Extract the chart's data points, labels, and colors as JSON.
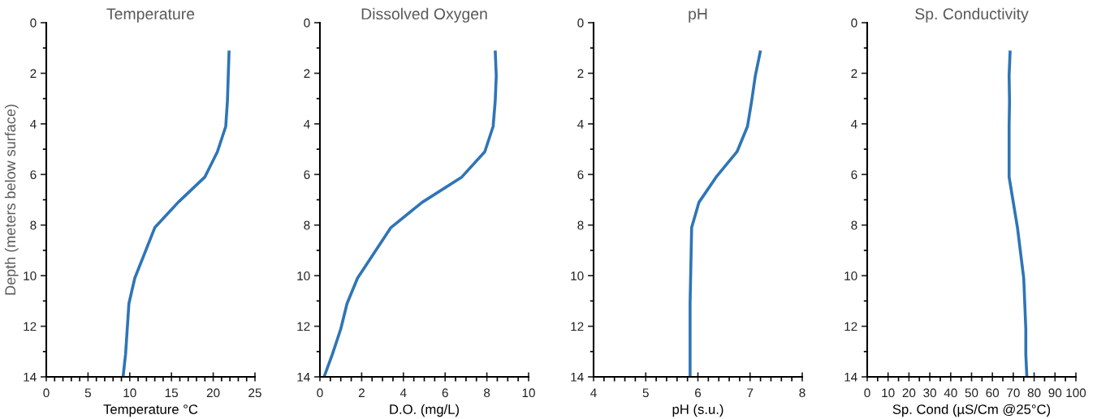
{
  "chart_data": [
    {
      "type": "line",
      "title": "Temperature",
      "xlabel": "Temperature °C",
      "ylabel": "Depth (meters below surface)",
      "xlim": [
        0,
        25
      ],
      "xticks": [
        0,
        {
          "value": 1,
          "label": null
        },
        {
          "value": 2,
          "label": null
        },
        {
          "value": 3,
          "label": null
        },
        {
          "value": 4,
          "label": null
        },
        5,
        {
          "value": 6,
          "label": null
        },
        {
          "value": 7,
          "label": null
        },
        {
          "value": 8,
          "label": null
        },
        {
          "value": 9,
          "label": null
        },
        10,
        {
          "value": 11,
          "label": null
        },
        {
          "value": 12,
          "label": null
        },
        {
          "value": 13,
          "label": null
        },
        {
          "value": 14,
          "label": null
        },
        15,
        {
          "value": 16,
          "label": null
        },
        {
          "value": 17,
          "label": null
        },
        {
          "value": 18,
          "label": null
        },
        {
          "value": 19,
          "label": null
        },
        20,
        {
          "value": 21,
          "label": null
        },
        {
          "value": 22,
          "label": null
        },
        {
          "value": 23,
          "label": null
        },
        {
          "value": 24,
          "label": null
        },
        25
      ],
      "ylim": [
        14,
        0
      ],
      "yticks": [
        0,
        {
          "value": 1,
          "label": null
        },
        2,
        {
          "value": 3,
          "label": null
        },
        4,
        {
          "value": 5,
          "label": null
        },
        6,
        {
          "value": 7,
          "label": null
        },
        8,
        {
          "value": 9,
          "label": null
        },
        10,
        {
          "value": 11,
          "label": null
        },
        12,
        {
          "value": 13,
          "label": null
        },
        14
      ],
      "grid": false,
      "marker": "none",
      "line_style": "solid",
      "series": [
        {
          "color": "#2e75b6",
          "x": [
            21.9,
            21.8,
            21.7,
            21.5,
            20.5,
            19.0,
            15.8,
            13.0,
            11.8,
            10.6,
            9.9,
            9.7,
            9.5,
            9.2
          ],
          "values": [
            1.1,
            2.1,
            3.1,
            4.1,
            5.1,
            6.1,
            7.1,
            8.1,
            9.1,
            10.1,
            11.1,
            12.1,
            13.1,
            14
          ]
        }
      ]
    },
    {
      "type": "line",
      "title": "Dissolved Oxygen",
      "xlabel": "D.O. (mg/L)",
      "xlim": [
        0,
        10
      ],
      "xticks": [
        0,
        {
          "value": 0.5,
          "label": null
        },
        {
          "value": 1,
          "label": null
        },
        {
          "value": 1.5,
          "label": null
        },
        2,
        {
          "value": 2.5,
          "label": null
        },
        {
          "value": 3,
          "label": null
        },
        {
          "value": 3.5,
          "label": null
        },
        4,
        {
          "value": 4.5,
          "label": null
        },
        {
          "value": 5,
          "label": null
        },
        {
          "value": 5.5,
          "label": null
        },
        6,
        {
          "value": 6.5,
          "label": null
        },
        {
          "value": 7,
          "label": null
        },
        {
          "value": 7.5,
          "label": null
        },
        8,
        {
          "value": 8.5,
          "label": null
        },
        {
          "value": 9,
          "label": null
        },
        {
          "value": 9.5,
          "label": null
        },
        10
      ],
      "ylim": [
        14,
        0
      ],
      "yticks": [
        0,
        {
          "value": 1,
          "label": null
        },
        2,
        {
          "value": 3,
          "label": null
        },
        4,
        {
          "value": 5,
          "label": null
        },
        6,
        {
          "value": 7,
          "label": null
        },
        8,
        {
          "value": 9,
          "label": null
        },
        10,
        {
          "value": 11,
          "label": null
        },
        12,
        {
          "value": 13,
          "label": null
        },
        14
      ],
      "grid": false,
      "marker": "none",
      "line_style": "solid",
      "series": [
        {
          "color": "#2e75b6",
          "x": [
            8.4,
            8.45,
            8.4,
            8.3,
            7.9,
            6.8,
            4.9,
            3.4,
            2.6,
            1.8,
            1.3,
            1.0,
            0.6,
            0.2
          ],
          "values": [
            1.1,
            2.1,
            3.1,
            4.1,
            5.1,
            6.1,
            7.1,
            8.1,
            9.1,
            10.1,
            11.1,
            12.1,
            13.1,
            14
          ]
        }
      ]
    },
    {
      "type": "line",
      "title": "pH",
      "xlabel": "pH (s.u.)",
      "xlim": [
        4,
        8
      ],
      "xticks": [
        4,
        {
          "value": 4.2,
          "label": null
        },
        {
          "value": 4.4,
          "label": null
        },
        {
          "value": 4.6,
          "label": null
        },
        {
          "value": 4.8,
          "label": null
        },
        5,
        {
          "value": 5.2,
          "label": null
        },
        {
          "value": 5.4,
          "label": null
        },
        {
          "value": 5.6,
          "label": null
        },
        {
          "value": 5.8,
          "label": null
        },
        6,
        {
          "value": 6.2,
          "label": null
        },
        {
          "value": 6.4,
          "label": null
        },
        {
          "value": 6.6,
          "label": null
        },
        {
          "value": 6.8,
          "label": null
        },
        7,
        {
          "value": 7.2,
          "label": null
        },
        {
          "value": 7.4,
          "label": null
        },
        {
          "value": 7.6,
          "label": null
        },
        {
          "value": 7.8,
          "label": null
        },
        8
      ],
      "ylim": [
        14,
        0
      ],
      "yticks": [
        0,
        {
          "value": 1,
          "label": null
        },
        2,
        {
          "value": 3,
          "label": null
        },
        4,
        {
          "value": 5,
          "label": null
        },
        6,
        {
          "value": 7,
          "label": null
        },
        8,
        {
          "value": 9,
          "label": null
        },
        10,
        {
          "value": 11,
          "label": null
        },
        12,
        {
          "value": 13,
          "label": null
        },
        14
      ],
      "grid": false,
      "marker": "none",
      "line_style": "solid",
      "series": [
        {
          "color": "#2e75b6",
          "x": [
            7.2,
            7.1,
            7.03,
            6.95,
            6.75,
            6.35,
            6.02,
            5.88,
            5.87,
            5.86,
            5.85,
            5.85,
            5.85,
            5.85
          ],
          "values": [
            1.1,
            2.1,
            3.1,
            4.1,
            5.1,
            6.1,
            7.1,
            8.1,
            9.1,
            10.1,
            11.1,
            12.1,
            13.1,
            14
          ]
        }
      ]
    },
    {
      "type": "line",
      "title": "Sp. Conductivity",
      "xlabel": "Sp. Cond (µS/Cm @25°C)",
      "xlim": [
        0,
        100
      ],
      "xticks": [
        0,
        {
          "value": 5,
          "label": null
        },
        10,
        {
          "value": 15,
          "label": null
        },
        20,
        {
          "value": 25,
          "label": null
        },
        30,
        {
          "value": 35,
          "label": null
        },
        40,
        {
          "value": 45,
          "label": null
        },
        50,
        {
          "value": 55,
          "label": null
        },
        60,
        {
          "value": 65,
          "label": null
        },
        70,
        {
          "value": 75,
          "label": null
        },
        80,
        {
          "value": 85,
          "label": null
        },
        90,
        {
          "value": 95,
          "label": null
        },
        100
      ],
      "ylim": [
        14,
        0
      ],
      "yticks": [
        0,
        {
          "value": 1,
          "label": null
        },
        2,
        {
          "value": 3,
          "label": null
        },
        4,
        {
          "value": 5,
          "label": null
        },
        6,
        {
          "value": 7,
          "label": null
        },
        8,
        {
          "value": 9,
          "label": null
        },
        10,
        {
          "value": 11,
          "label": null
        },
        12,
        {
          "value": 13,
          "label": null
        },
        14
      ],
      "grid": false,
      "marker": "none",
      "line_style": "solid",
      "series": [
        {
          "color": "#2e75b6",
          "x": [
            68.5,
            68.0,
            68.2,
            68.0,
            68.0,
            68.0,
            70.0,
            72.0,
            73.5,
            75.0,
            75.5,
            76.0,
            76.0,
            76.5
          ],
          "values": [
            1.1,
            2.1,
            3.1,
            4.1,
            5.1,
            6.1,
            7.1,
            8.1,
            9.1,
            10.1,
            11.1,
            12.1,
            13.1,
            14
          ]
        }
      ]
    }
  ]
}
